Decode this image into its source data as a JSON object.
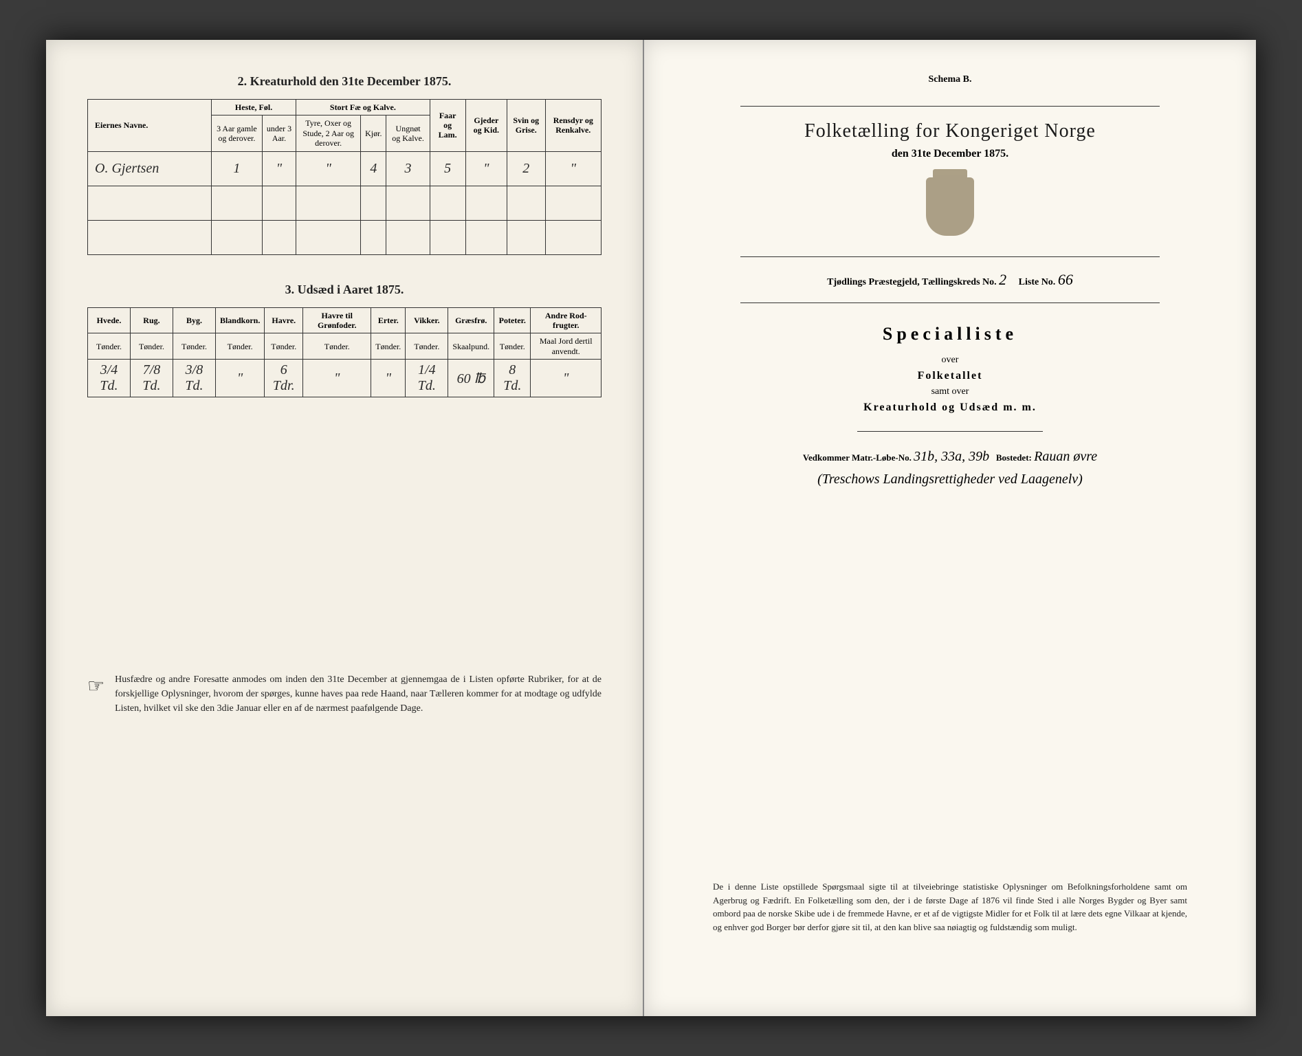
{
  "leftPage": {
    "section2": {
      "title": "2. Kreaturhold den 31te December 1875.",
      "headers": {
        "name": "Eiernes Navne.",
        "horses": "Heste, Føl.",
        "horses_sub1": "3 Aar gamle og derover.",
        "horses_sub2": "under 3 Aar.",
        "cattle": "Stort Fæ og Kalve.",
        "cattle_sub1": "Tyre, Oxer og Stude, 2 Aar og derover.",
        "cattle_sub2": "Kjør.",
        "cattle_sub3": "Ungnøt og Kalve.",
        "sheep": "Faar og Lam.",
        "goats": "Gjeder og Kid.",
        "pigs": "Svin og Grise.",
        "reindeer": "Rensdyr og Renkalve."
      },
      "row": {
        "name": "O. Gjertsen",
        "horses_old": "1",
        "horses_young": "\"",
        "bulls": "\"",
        "cows": "4",
        "calves": "3",
        "sheep": "5",
        "goats": "\"",
        "pigs": "2",
        "reindeer": "\""
      }
    },
    "section3": {
      "title": "3. Udsæd i Aaret 1875.",
      "headers": {
        "wheat": "Hvede.",
        "rye": "Rug.",
        "barley": "Byg.",
        "mixed": "Blandkorn.",
        "oats": "Havre.",
        "oats_green": "Havre til Grønfoder.",
        "peas": "Erter.",
        "vetch": "Vikker.",
        "grass": "Græsfrø.",
        "potato": "Poteter.",
        "root": "Andre Rod-frugter.",
        "unit_t": "Tønder.",
        "unit_s": "Skaalpund.",
        "unit_m": "Maal Jord dertil anvendt."
      },
      "row": {
        "wheat": "3/4 Td.",
        "rye": "7/8 Td.",
        "barley": "3/8 Td.",
        "mixed": "\"",
        "oats": "6 Tdr.",
        "oats_green": "\"",
        "peas": "\"",
        "vetch": "1/4 Td.",
        "grass": "60 ℔",
        "potato": "8 Td.",
        "root": "\""
      }
    },
    "footer": "Husfædre og andre Foresatte anmodes om inden den 31te December at gjennemgaa de i Listen opførte Rubriker, for at de forskjellige Oplysninger, hvorom der spørges, kunne haves paa rede Haand, naar Tælleren kommer for at modtage og udfylde Listen, hvilket vil ske den 3die Januar eller en af de nærmest paafølgende Dage."
  },
  "rightPage": {
    "schema": "Schema B.",
    "mainTitle": "Folketælling for Kongeriget Norge",
    "dateLine": "den 31te December 1875.",
    "districtLabel1": "Tjødlings Præstegjeld, Tællingskreds No.",
    "districtNo": "2",
    "listeLabel": "Liste No.",
    "listeNo": "66",
    "specialTitle": "Specialliste",
    "over": "over",
    "folketallet": "Folketallet",
    "samtOver": "samt over",
    "kreatur": "Kreaturhold og Udsæd m. m.",
    "vedkomLabel": "Vedkommer Matr.-Løbe-No.",
    "matrNo": "31b, 33a, 39b",
    "bostedLabel": "Bostedet:",
    "bosted": "Rauan øvre",
    "handLine": "(Treschows Landingsrettigheder ved Laagenelv)",
    "footer": "De i denne Liste opstillede Spørgsmaal sigte til at tilveiebringe statistiske Oplysninger om Befolkningsforholdene samt om Agerbrug og Fædrift. En Folketælling som den, der i de første Dage af 1876 vil finde Sted i alle Norges Bygder og Byer samt ombord paa de norske Skibe ude i de fremmede Havne, er et af de vigtigste Midler for et Folk til at lære dets egne Vilkaar at kjende, og enhver god Borger bør derfor gjøre sit til, at den kan blive saa nøiagtig og fuldstændig som muligt."
  }
}
